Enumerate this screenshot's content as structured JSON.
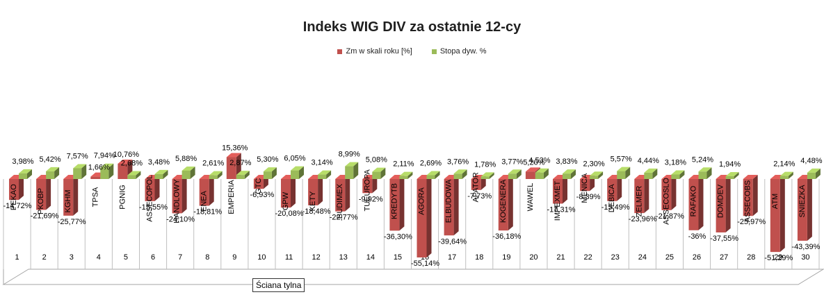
{
  "chart_data": {
    "type": "bar",
    "title": "Indeks WIG DIV za ostatnie 12-cy",
    "categories": [
      "1",
      "2",
      "3",
      "4",
      "5",
      "6",
      "7",
      "8",
      "9",
      "10",
      "11",
      "12",
      "13",
      "14",
      "15",
      "16",
      "17",
      "18",
      "19",
      "20",
      "21",
      "22",
      "23",
      "24",
      "25",
      "26",
      "27",
      "28",
      "29",
      "30"
    ],
    "bar_labels": [
      "PEKAO",
      "PKOBP",
      "KGHM",
      "TPSA",
      "PGNIG",
      "ASSECOPOL",
      "HANDLOWY",
      "ENEA",
      "EMPERIA",
      "GTC",
      "GPW",
      "KETY",
      "BUDIMEX",
      "TUEUROPA",
      "KREDYTB",
      "AGORA",
      "ELBUDOWA",
      "APATOR",
      "KOGENERA",
      "WAWEL",
      "IMPEXMET",
      "MENICA",
      "DEBICA",
      "ZELMER",
      "ASSECOSLO",
      "RAFAKO",
      "DOMDEV",
      "ASSECOBS",
      "ATM",
      "SNIEZKA"
    ],
    "series": [
      {
        "name": "Zm w skali roku [%]",
        "color": "#c0504d",
        "values": [
          -14.72,
          -21.69,
          -25.77,
          1.66,
          10.76,
          -15.55,
          -24.1,
          -18.81,
          15.36,
          -6.93,
          -20.08,
          -18.48,
          -22.77,
          -9.92,
          -36.3,
          -55.14,
          -39.64,
          -7.73,
          -36.18,
          5.2,
          -17.31,
          -8.39,
          -15.49,
          -23.96,
          -21.87,
          -36.0,
          -37.55,
          -25.97,
          -51.29,
          -43.39
        ],
        "value_labels": [
          "-14,72%",
          "-21,69%",
          "-25,77%",
          "1,66%",
          "10,76%",
          "-15,55%",
          "-24,10%",
          "-18,81%",
          "15,36%",
          "-6,93%",
          "-20,08%",
          "-18,48%",
          "-22,77%",
          "-9,92%",
          "-36,30%",
          "-55,14%",
          "-39,64%",
          "-7,73%",
          "-36,18%",
          "5,20%",
          "-17,31%",
          "-8,39%",
          "-15,49%",
          "-23,96%",
          "-21,87%",
          "-36%",
          "-37,55%",
          "-25,97%",
          "-51,29%",
          "-43,39%"
        ]
      },
      {
        "name": "Stopa dyw. %",
        "color": "#9bbb59",
        "values": [
          3.98,
          5.42,
          7.57,
          7.94,
          2.68,
          3.48,
          5.88,
          2.61,
          2.87,
          5.3,
          6.05,
          3.14,
          8.99,
          5.08,
          2.11,
          2.69,
          3.76,
          1.78,
          3.77,
          4.53,
          3.83,
          2.3,
          5.57,
          4.44,
          3.18,
          5.24,
          1.94,
          0,
          2.14,
          4.48
        ],
        "value_labels": [
          "3,98%",
          "5,42%",
          "7,57%",
          "7,94%",
          "2,68%",
          "3,48%",
          "5,88%",
          "2,61%",
          "2,87%",
          "5,30%",
          "6,05%",
          "3,14%",
          "8,99%",
          "5,08%",
          "2,11%",
          "2,69%",
          "3,76%",
          "1,78%",
          "3,77%",
          "4,53%",
          "3,83%",
          "2,30%",
          "5,57%",
          "4,44%",
          "3,18%",
          "5,24%",
          "1,94%",
          "",
          "2,14%",
          "4,48%"
        ]
      }
    ],
    "legend_position": "top",
    "grid": false,
    "floor_label": "Ściana tylna"
  }
}
